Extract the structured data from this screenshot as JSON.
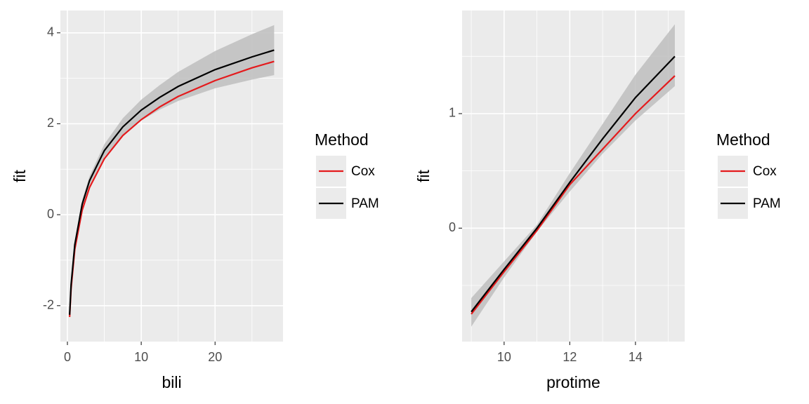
{
  "chart_data": [
    {
      "type": "line",
      "x_label": "bili",
      "y_label": "fit",
      "legend_title": "Method",
      "x": [
        0.3,
        0.5,
        1,
        2,
        3,
        5,
        7.5,
        10,
        12.5,
        15,
        20,
        25,
        28
      ],
      "series": [
        {
          "name": "Cox",
          "color": "#e41a1c",
          "values": [
            -2.25,
            -1.62,
            -0.76,
            0.1,
            0.6,
            1.23,
            1.74,
            2.09,
            2.37,
            2.6,
            2.95,
            3.23,
            3.37
          ]
        },
        {
          "name": "PAM",
          "color": "#000000",
          "values": [
            -2.2,
            -1.54,
            -0.66,
            0.23,
            0.75,
            1.41,
            1.93,
            2.3,
            2.58,
            2.82,
            3.19,
            3.47,
            3.62
          ]
        }
      ],
      "ribbon_lower": [
        -2.26,
        -1.6,
        -0.73,
        0.14,
        0.65,
        1.27,
        1.74,
        2.07,
        2.31,
        2.5,
        2.78,
        2.97,
        3.07
      ],
      "ribbon_upper": [
        -2.15,
        -1.48,
        -0.59,
        0.32,
        0.85,
        1.55,
        2.12,
        2.53,
        2.85,
        3.14,
        3.6,
        3.97,
        4.17
      ],
      "ribbon_color": "#bebebe",
      "xlim": [
        -0.95,
        29.2
      ],
      "ylim": [
        -2.79,
        4.49
      ],
      "xticks": [
        0,
        10,
        20
      ],
      "yticks": [
        -2,
        0,
        2,
        4
      ],
      "grid": true
    },
    {
      "type": "line",
      "x_label": "protime",
      "y_label": "fit",
      "legend_title": "Method",
      "x": [
        9,
        10,
        11,
        12,
        13,
        14,
        15.2
      ],
      "series": [
        {
          "name": "Cox",
          "color": "#e41a1c",
          "values": [
            -0.75,
            -0.38,
            -0.02,
            0.38,
            0.69,
            1.0,
            1.33
          ]
        },
        {
          "name": "PAM",
          "color": "#000000",
          "values": [
            -0.73,
            -0.36,
            0.0,
            0.4,
            0.78,
            1.14,
            1.5
          ]
        }
      ],
      "ribbon_lower": [
        -0.86,
        -0.43,
        -0.03,
        0.32,
        0.65,
        0.94,
        1.24
      ],
      "ribbon_upper": [
        -0.61,
        -0.29,
        0.03,
        0.48,
        0.91,
        1.34,
        1.78
      ],
      "ribbon_color": "#bebebe",
      "xlim": [
        8.72,
        15.5
      ],
      "ylim": [
        -0.99,
        1.9
      ],
      "xticks": [
        10,
        12,
        14
      ],
      "yticks": [
        0,
        1
      ],
      "grid": true
    }
  ]
}
